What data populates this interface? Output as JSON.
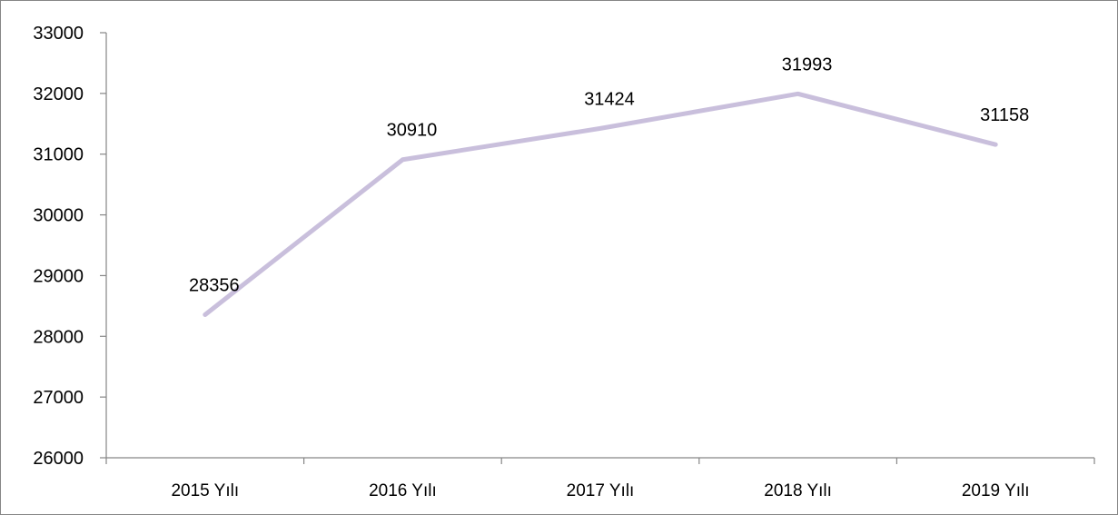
{
  "chart_data": {
    "type": "line",
    "title": "",
    "xlabel": "",
    "ylabel": "",
    "categories": [
      "2015 Yılı",
      "2016 Yılı",
      "2017 Yılı",
      "2018 Yılı",
      "2019 Yılı"
    ],
    "series": [
      {
        "values": [
          28356,
          30910,
          31424,
          31993,
          31158
        ],
        "color": "#c9bfdc"
      }
    ],
    "data_labels": [
      "28356",
      "30910",
      "31424",
      "31993",
      "31158"
    ],
    "ylim": [
      26000,
      33000
    ],
    "yticks": [
      26000,
      27000,
      28000,
      29000,
      30000,
      31000,
      32000,
      33000
    ],
    "ytick_labels": [
      "26000",
      "27000",
      "28000",
      "29000",
      "30000",
      "31000",
      "32000",
      "33000"
    ],
    "grid": false,
    "legend": "none",
    "axis_color": "#868686"
  }
}
